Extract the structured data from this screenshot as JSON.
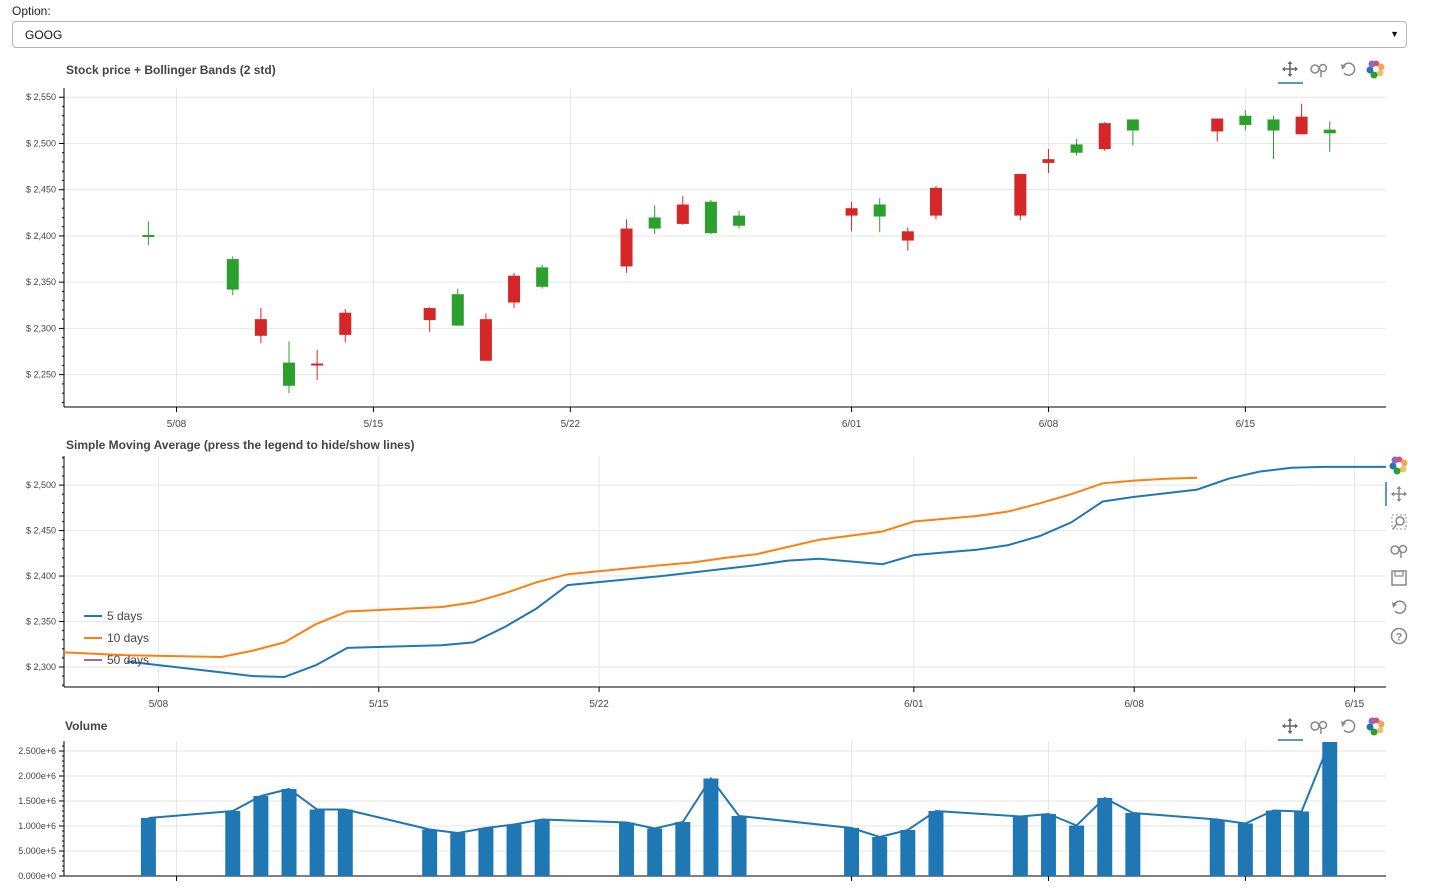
{
  "selector": {
    "label": "Option:",
    "value": "GOOG"
  },
  "chart_data": [
    {
      "type": "candlestick",
      "title": "Stock price + Bollinger Bands (2 std)",
      "ylim": [
        2215,
        2560
      ],
      "y_ticks": [
        {
          "value": 2250,
          "label": "$ 2,250"
        },
        {
          "value": 2300,
          "label": "$ 2,300"
        },
        {
          "value": 2350,
          "label": "$ 2,350"
        },
        {
          "value": 2400,
          "label": "$ 2,400"
        },
        {
          "value": 2450,
          "label": "$ 2,450"
        },
        {
          "value": 2500,
          "label": "$ 2,500"
        },
        {
          "value": 2550,
          "label": "$ 2,550"
        }
      ],
      "xlim": [
        "2021-05-04",
        "2021-06-20"
      ],
      "x_ticks": [
        {
          "date": "2021-05-08",
          "label": "5/08"
        },
        {
          "date": "2021-05-15",
          "label": "5/15"
        },
        {
          "date": "2021-05-22",
          "label": "5/22"
        },
        {
          "date": "2021-06-01",
          "label": "6/01"
        },
        {
          "date": "2021-06-08",
          "label": "6/08"
        },
        {
          "date": "2021-06-15",
          "label": "6/15"
        }
      ],
      "colors": {
        "up": "#2ca02c",
        "down": "#d62728"
      },
      "candles": [
        {
          "date": "2021-05-07",
          "open": 2399,
          "close": 2401,
          "high": 2416,
          "low": 2390,
          "dir": "up"
        },
        {
          "date": "2021-05-10",
          "open": 2342,
          "close": 2375,
          "high": 2378,
          "low": 2336,
          "dir": "up"
        },
        {
          "date": "2021-05-11",
          "open": 2310,
          "close": 2292,
          "high": 2322,
          "low": 2284,
          "dir": "down"
        },
        {
          "date": "2021-05-12",
          "open": 2238,
          "close": 2263,
          "high": 2286,
          "low": 2230,
          "dir": "up"
        },
        {
          "date": "2021-05-13",
          "open": 2262,
          "close": 2261,
          "high": 2277,
          "low": 2244,
          "dir": "down"
        },
        {
          "date": "2021-05-14",
          "open": 2317,
          "close": 2293,
          "high": 2321,
          "low": 2285,
          "dir": "down"
        },
        {
          "date": "2021-05-17",
          "open": 2322,
          "close": 2309,
          "high": 2323,
          "low": 2296,
          "dir": "down"
        },
        {
          "date": "2021-05-18",
          "open": 2303,
          "close": 2337,
          "high": 2343,
          "low": 2303,
          "dir": "up"
        },
        {
          "date": "2021-05-19",
          "open": 2310,
          "close": 2265,
          "high": 2316,
          "low": 2265,
          "dir": "down"
        },
        {
          "date": "2021-05-20",
          "open": 2357,
          "close": 2328,
          "high": 2360,
          "low": 2322,
          "dir": "down"
        },
        {
          "date": "2021-05-21",
          "open": 2345,
          "close": 2366,
          "high": 2369,
          "low": 2343,
          "dir": "up"
        },
        {
          "date": "2021-05-24",
          "open": 2408,
          "close": 2367,
          "high": 2418,
          "low": 2360,
          "dir": "down"
        },
        {
          "date": "2021-05-25",
          "open": 2408,
          "close": 2420,
          "high": 2433,
          "low": 2402,
          "dir": "up"
        },
        {
          "date": "2021-05-26",
          "open": 2434,
          "close": 2413,
          "high": 2443,
          "low": 2412,
          "dir": "down"
        },
        {
          "date": "2021-05-27",
          "open": 2403,
          "close": 2437,
          "high": 2439,
          "low": 2402,
          "dir": "up"
        },
        {
          "date": "2021-05-28",
          "open": 2411,
          "close": 2422,
          "high": 2427,
          "low": 2408,
          "dir": "up"
        },
        {
          "date": "2021-06-01",
          "open": 2430,
          "close": 2422,
          "high": 2437,
          "low": 2405,
          "dir": "down"
        },
        {
          "date": "2021-06-02",
          "open": 2421,
          "close": 2434,
          "high": 2441,
          "low": 2404,
          "dir": "up"
        },
        {
          "date": "2021-06-03",
          "open": 2405,
          "close": 2395,
          "high": 2409,
          "low": 2384,
          "dir": "down"
        },
        {
          "date": "2021-06-04",
          "open": 2452,
          "close": 2422,
          "high": 2454,
          "low": 2418,
          "dir": "down"
        },
        {
          "date": "2021-06-07",
          "open": 2467,
          "close": 2422,
          "high": 2467,
          "low": 2417,
          "dir": "down"
        },
        {
          "date": "2021-06-08",
          "open": 2483,
          "close": 2479,
          "high": 2494,
          "low": 2468,
          "dir": "down"
        },
        {
          "date": "2021-06-09",
          "open": 2490,
          "close": 2499,
          "high": 2505,
          "low": 2487,
          "dir": "up"
        },
        {
          "date": "2021-06-10",
          "open": 2522,
          "close": 2494,
          "high": 2523,
          "low": 2492,
          "dir": "down"
        },
        {
          "date": "2021-06-11",
          "open": 2514,
          "close": 2526,
          "high": 2526,
          "low": 2498,
          "dir": "up"
        },
        {
          "date": "2021-06-14",
          "open": 2527,
          "close": 2513,
          "high": 2527,
          "low": 2502,
          "dir": "down"
        },
        {
          "date": "2021-06-15",
          "open": 2520,
          "close": 2530,
          "high": 2536,
          "low": 2514,
          "dir": "up"
        },
        {
          "date": "2021-06-16",
          "open": 2514,
          "close": 2526,
          "high": 2530,
          "low": 2483,
          "dir": "up"
        },
        {
          "date": "2021-06-17",
          "open": 2529,
          "close": 2510,
          "high": 2543,
          "low": 2510,
          "dir": "down"
        },
        {
          "date": "2021-06-18",
          "open": 2511,
          "close": 2515,
          "high": 2524,
          "low": 2491,
          "dir": "up"
        }
      ]
    },
    {
      "type": "line",
      "title": "Simple Moving Average (press the legend to hide/show lines)",
      "ylim": [
        2278,
        2532
      ],
      "y_ticks": [
        {
          "value": 2300,
          "label": "$ 2,300"
        },
        {
          "value": 2350,
          "label": "$ 2,350"
        },
        {
          "value": 2400,
          "label": "$ 2,400"
        },
        {
          "value": 2450,
          "label": "$ 2,450"
        },
        {
          "value": 2500,
          "label": "$ 2,500"
        }
      ],
      "xlim": [
        "2021-05-05",
        "2021-06-16"
      ],
      "x_ticks": [
        {
          "date": "2021-05-08",
          "label": "5/08"
        },
        {
          "date": "2021-05-15",
          "label": "5/15"
        },
        {
          "date": "2021-05-22",
          "label": "5/22"
        },
        {
          "date": "2021-06-01",
          "label": "6/01"
        },
        {
          "date": "2021-06-08",
          "label": "6/08"
        },
        {
          "date": "2021-06-15",
          "label": "6/15"
        }
      ],
      "legend_position": "bottom-left",
      "series": [
        {
          "name": "5 days",
          "color": "#1f77b4",
          "points": [
            [
              "2021-05-07",
              2306
            ],
            [
              "2021-05-10",
              2294
            ],
            [
              "2021-05-11",
              2290
            ],
            [
              "2021-05-12",
              2289
            ],
            [
              "2021-05-13",
              2302
            ],
            [
              "2021-05-14",
              2321
            ],
            [
              "2021-05-17",
              2324
            ],
            [
              "2021-05-18",
              2327
            ],
            [
              "2021-05-19",
              2344
            ],
            [
              "2021-05-20",
              2364
            ],
            [
              "2021-05-21",
              2390
            ],
            [
              "2021-05-24",
              2400
            ],
            [
              "2021-05-25",
              2404
            ],
            [
              "2021-05-26",
              2408
            ],
            [
              "2021-05-27",
              2412
            ],
            [
              "2021-05-28",
              2417
            ],
            [
              "2021-05-29",
              2419
            ],
            [
              "2021-05-31",
              2413
            ],
            [
              "2021-06-01",
              2423
            ],
            [
              "2021-06-02",
              2426
            ],
            [
              "2021-06-03",
              2429
            ],
            [
              "2021-06-04",
              2434
            ],
            [
              "2021-06-05",
              2444
            ],
            [
              "2021-06-06",
              2459
            ],
            [
              "2021-06-07",
              2482
            ],
            [
              "2021-06-08",
              2487
            ],
            [
              "2021-06-09",
              2491
            ],
            [
              "2021-06-10",
              2495
            ],
            [
              "2021-06-11",
              2507
            ],
            [
              "2021-06-12",
              2515
            ],
            [
              "2021-06-13",
              2519
            ],
            [
              "2021-06-14",
              2520
            ],
            [
              "2021-06-15",
              2520
            ],
            [
              "2021-06-16",
              2520
            ]
          ]
        },
        {
          "name": "10 days",
          "color": "#ff7f0e",
          "points": [
            [
              "2021-05-05",
              2316
            ],
            [
              "2021-05-07",
              2313
            ],
            [
              "2021-05-10",
              2311
            ],
            [
              "2021-05-11",
              2318
            ],
            [
              "2021-05-12",
              2327
            ],
            [
              "2021-05-13",
              2347
            ],
            [
              "2021-05-14",
              2361
            ],
            [
              "2021-05-17",
              2366
            ],
            [
              "2021-05-18",
              2371
            ],
            [
              "2021-05-19",
              2381
            ],
            [
              "2021-05-20",
              2393
            ],
            [
              "2021-05-21",
              2402
            ],
            [
              "2021-05-24",
              2412
            ],
            [
              "2021-05-25",
              2415
            ],
            [
              "2021-05-26",
              2420
            ],
            [
              "2021-05-27",
              2424
            ],
            [
              "2021-05-28",
              2432
            ],
            [
              "2021-05-29",
              2440
            ],
            [
              "2021-05-31",
              2449
            ],
            [
              "2021-06-01",
              2460
            ],
            [
              "2021-06-02",
              2463
            ],
            [
              "2021-06-03",
              2466
            ],
            [
              "2021-06-04",
              2471
            ],
            [
              "2021-06-05",
              2480
            ],
            [
              "2021-06-06",
              2490
            ],
            [
              "2021-06-07",
              2502
            ],
            [
              "2021-06-08",
              2505
            ],
            [
              "2021-06-09",
              2507
            ],
            [
              "2021-06-10",
              2508
            ]
          ]
        },
        {
          "name": "50 days",
          "color": "#9467bd",
          "points": []
        }
      ]
    },
    {
      "type": "bar",
      "title": "Volume",
      "ylim": [
        0,
        2700000
      ],
      "y_ticks": [
        {
          "value": 0,
          "label": "0.000e+0"
        },
        {
          "value": 500000,
          "label": "5.000e+5"
        },
        {
          "value": 1000000,
          "label": "1.000e+6"
        },
        {
          "value": 1500000,
          "label": "1.500e+6"
        },
        {
          "value": 2000000,
          "label": "2.000e+6"
        },
        {
          "value": 2500000,
          "label": "2.500e+6"
        }
      ],
      "xlim": [
        "2021-05-04",
        "2021-06-20"
      ],
      "x_ticks": [
        "2021-05-08",
        "2021-06-01",
        "2021-06-08",
        "2021-06-15"
      ],
      "color": "#1f77b4",
      "bars": [
        {
          "date": "2021-05-07",
          "value": 1160000
        },
        {
          "date": "2021-05-10",
          "value": 1300000
        },
        {
          "date": "2021-05-11",
          "value": 1600000
        },
        {
          "date": "2021-05-12",
          "value": 1740000
        },
        {
          "date": "2021-05-13",
          "value": 1330000
        },
        {
          "date": "2021-05-14",
          "value": 1330000
        },
        {
          "date": "2021-05-17",
          "value": 930000
        },
        {
          "date": "2021-05-18",
          "value": 860000
        },
        {
          "date": "2021-05-19",
          "value": 960000
        },
        {
          "date": "2021-05-20",
          "value": 1030000
        },
        {
          "date": "2021-05-21",
          "value": 1130000
        },
        {
          "date": "2021-05-24",
          "value": 1070000
        },
        {
          "date": "2021-05-25",
          "value": 950000
        },
        {
          "date": "2021-05-26",
          "value": 1080000
        },
        {
          "date": "2021-05-27",
          "value": 1950000
        },
        {
          "date": "2021-05-28",
          "value": 1200000
        },
        {
          "date": "2021-06-01",
          "value": 960000
        },
        {
          "date": "2021-06-02",
          "value": 780000
        },
        {
          "date": "2021-06-03",
          "value": 920000
        },
        {
          "date": "2021-06-04",
          "value": 1300000
        },
        {
          "date": "2021-06-07",
          "value": 1190000
        },
        {
          "date": "2021-06-08",
          "value": 1240000
        },
        {
          "date": "2021-06-09",
          "value": 1010000
        },
        {
          "date": "2021-06-10",
          "value": 1560000
        },
        {
          "date": "2021-06-11",
          "value": 1260000
        },
        {
          "date": "2021-06-14",
          "value": 1130000
        },
        {
          "date": "2021-06-15",
          "value": 1050000
        },
        {
          "date": "2021-06-16",
          "value": 1310000
        },
        {
          "date": "2021-06-17",
          "value": 1290000
        },
        {
          "date": "2021-06-18",
          "value": 2680000
        }
      ]
    }
  ]
}
